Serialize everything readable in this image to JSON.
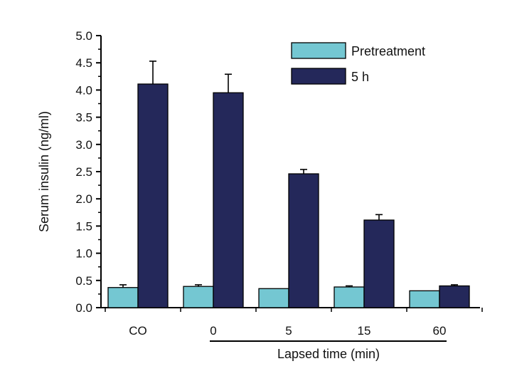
{
  "chart_data": {
    "type": "bar",
    "categories": [
      "CO",
      "0",
      "5",
      "15",
      "60"
    ],
    "series": [
      {
        "name": "Pretreatment",
        "values": [
          0.37,
          0.39,
          0.35,
          0.38,
          0.31
        ],
        "errors": [
          0.05,
          0.03,
          0.0,
          0.02,
          0.0
        ],
        "color": "#74c7d2"
      },
      {
        "name": "5 h",
        "values": [
          4.11,
          3.95,
          2.46,
          1.61,
          0.4
        ],
        "errors": [
          0.42,
          0.34,
          0.08,
          0.1,
          0.02
        ],
        "color": "#24285a"
      }
    ],
    "ylabel": "Serum insulin (ng/ml)",
    "group_label": "Lapsed time (min)",
    "ylim": [
      0,
      5.0
    ],
    "yticks": [
      "0.0",
      "0.5",
      "1.0",
      "1.5",
      "2.0",
      "2.5",
      "3.0",
      "3.5",
      "4.0",
      "4.5",
      "5.0"
    ],
    "grid": false,
    "legend_position": "top-right"
  }
}
